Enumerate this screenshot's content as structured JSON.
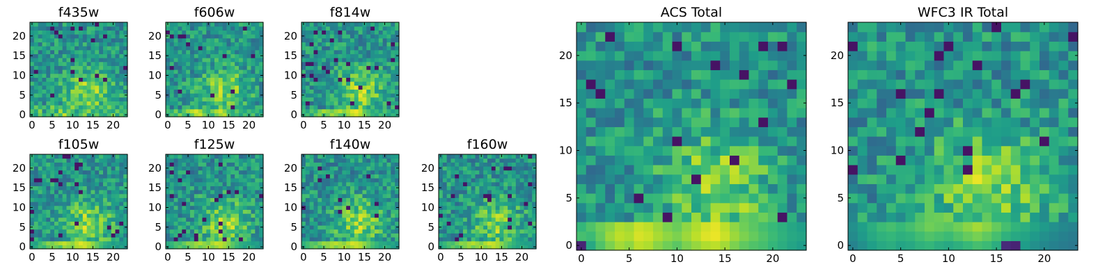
{
  "colormap": {
    "name": "viridis",
    "stops": [
      "#440154",
      "#482878",
      "#3e4a89",
      "#31688e",
      "#26828e",
      "#1f9e89",
      "#35b779",
      "#6ece58",
      "#b5de2b",
      "#fde725"
    ]
  },
  "axes_style": {
    "frame_color": "#000000",
    "background": "#ffffff"
  },
  "chart_data": [
    {
      "type": "heatmap",
      "title": "f435w",
      "grid_size": [
        24,
        24
      ],
      "xlim": [
        -0.5,
        23.5
      ],
      "ylim": [
        -0.5,
        23.5
      ],
      "origin": "lower",
      "xticks": [
        0,
        5,
        10,
        15,
        20
      ],
      "yticks": [
        0,
        5,
        10,
        15,
        20
      ],
      "xticklabels": [
        "0",
        "5",
        "10",
        "15",
        "20"
      ],
      "yticklabels": [
        "0",
        "5",
        "10",
        "15",
        "20"
      ],
      "grid": false,
      "value_range": [
        0,
        1
      ],
      "values": [
        [
          0.65,
          0.55,
          0.78,
          0.62,
          0.71,
          0.58,
          0.8,
          0.69,
          0.92,
          0.74,
          0.66,
          0.6,
          0.72,
          0.83,
          0.55,
          0.68,
          0.77,
          0.63,
          0.59,
          0.7,
          0.81,
          0.57,
          0.75,
          0.64
        ],
        [
          0.72,
          0.6,
          0.83,
          0.45,
          0.68,
          0.74,
          0.56,
          0.88,
          0.62,
          0.79,
          0.7,
          0.53,
          0.66,
          0.75,
          0.84,
          0.6,
          0.69,
          0.57,
          0.73,
          0.62,
          0.58,
          0.78,
          0.65,
          0.7
        ],
        [
          0.58,
          0.77,
          0.63,
          0.71,
          0.55,
          0.82,
          0.67,
          0.73,
          0.6,
          0.68,
          0.85,
          0.72,
          0.57,
          0.64,
          0.7,
          0.79,
          0.61,
          0.74,
          0.66,
          0.8,
          0.69,
          0.52,
          0.71,
          0.6
        ]
      ]
    },
    {
      "type": "heatmap",
      "title": "f606w",
      "grid_size": [
        24,
        24
      ],
      "xlim": [
        -0.5,
        23.5
      ],
      "ylim": [
        -0.5,
        23.5
      ],
      "origin": "lower",
      "xticks": [
        0,
        5,
        10,
        15,
        20
      ],
      "yticks": [
        0,
        5,
        10,
        15,
        20
      ],
      "xticklabels": [
        "0",
        "5",
        "10",
        "15",
        "20"
      ],
      "yticklabels": [
        "0",
        "5",
        "10",
        "15",
        "20"
      ],
      "grid": false,
      "value_range": [
        0,
        1
      ],
      "values": [
        [
          0.6,
          0.72,
          0.66,
          0.81,
          0.69,
          0.58,
          0.75,
          0.88,
          0.92,
          0.8,
          0.7,
          0.64,
          0.78,
          0.85,
          0.9,
          0.73,
          0.62,
          0.68,
          0.57,
          0.71,
          0.6,
          0.74,
          0.52,
          0.66
        ],
        [
          0.7,
          0.63,
          0.79,
          0.58,
          0.74,
          0.85,
          0.9,
          0.95,
          0.87,
          0.72,
          0.66,
          0.8,
          0.88,
          0.93,
          0.82,
          0.69,
          0.61,
          0.75,
          0.65,
          0.59,
          0.7,
          0.62,
          0.68,
          0.55
        ]
      ]
    },
    {
      "type": "heatmap",
      "title": "f814w",
      "grid_size": [
        24,
        24
      ],
      "xlim": [
        -0.5,
        23.5
      ],
      "ylim": [
        -0.5,
        23.5
      ],
      "origin": "lower",
      "xticks": [
        0,
        5,
        10,
        15,
        20
      ],
      "yticks": [
        0,
        5,
        10,
        15,
        20
      ],
      "xticklabels": [
        "0",
        "5",
        "10",
        "15",
        "20"
      ],
      "yticklabels": [
        "0",
        "5",
        "10",
        "15",
        "20"
      ],
      "grid": false,
      "value_range": [
        0,
        1
      ],
      "values": [
        [
          0.62,
          0.7,
          0.58,
          0.75,
          0.82,
          0.68,
          0.77,
          0.86,
          0.8,
          0.73,
          0.69,
          0.84,
          0.9,
          0.94,
          0.88,
          0.79,
          0.72,
          0.65,
          0.6,
          0.7,
          0.63,
          0.57,
          0.66,
          0.6
        ],
        [
          0.68,
          0.59,
          0.73,
          0.66,
          0.79,
          0.87,
          0.83,
          0.78,
          0.85,
          0.9,
          0.82,
          0.88,
          0.95,
          0.98,
          0.91,
          0.76,
          0.7,
          0.61,
          0.67,
          0.58,
          0.72,
          0.64,
          0.55,
          0.62
        ]
      ]
    },
    {
      "type": "heatmap",
      "title": "f105w",
      "grid_size": [
        24,
        24
      ],
      "xlim": [
        -0.5,
        23.5
      ],
      "ylim": [
        -0.5,
        23.5
      ],
      "origin": "lower",
      "xticks": [
        0,
        5,
        10,
        15,
        20
      ],
      "yticks": [
        0,
        5,
        10,
        15,
        20
      ],
      "xticklabels": [
        "0",
        "5",
        "10",
        "15",
        "20"
      ],
      "yticklabels": [
        "0",
        "5",
        "10",
        "15",
        "20"
      ],
      "grid": false,
      "value_range": [
        0,
        1
      ],
      "values": [
        [
          0.55,
          0.62,
          0.7,
          0.66,
          0.74,
          0.8,
          0.77,
          0.72,
          0.85,
          0.82,
          0.79,
          0.88,
          0.9,
          0.93,
          0.86,
          0.81,
          0.75,
          0.68,
          0.6,
          0.57,
          0.63,
          0.52,
          0.58,
          0.5
        ],
        [
          0.6,
          0.57,
          0.68,
          0.75,
          0.82,
          0.79,
          0.84,
          0.88,
          0.91,
          0.87,
          0.83,
          0.9,
          0.96,
          0.92,
          0.89,
          0.83,
          0.76,
          0.7,
          0.64,
          0.6,
          0.55,
          0.59,
          0.53,
          0.56
        ]
      ]
    },
    {
      "type": "heatmap",
      "title": "f125w",
      "grid_size": [
        24,
        24
      ],
      "xlim": [
        -0.5,
        23.5
      ],
      "ylim": [
        -0.5,
        23.5
      ],
      "origin": "lower",
      "xticks": [
        0,
        5,
        10,
        15,
        20
      ],
      "yticks": [
        0,
        5,
        10,
        15,
        20
      ],
      "xticklabels": [
        "0",
        "5",
        "10",
        "15",
        "20"
      ],
      "yticklabels": [
        "0",
        "5",
        "10",
        "15",
        "20"
      ],
      "grid": false,
      "value_range": [
        0,
        1
      ],
      "values": [
        [
          0.58,
          0.63,
          0.7,
          0.74,
          0.68,
          0.72,
          0.79,
          0.83,
          0.77,
          0.81,
          0.86,
          0.8,
          0.84,
          0.89,
          0.85,
          0.78,
          0.73,
          0.66,
          0.62,
          0.57,
          0.65,
          0.6,
          0.54,
          0.52
        ],
        [
          0.62,
          0.66,
          0.71,
          0.69,
          0.76,
          0.82,
          0.8,
          0.85,
          0.88,
          0.83,
          0.79,
          0.87,
          0.92,
          0.9,
          0.86,
          0.81,
          0.74,
          0.69,
          0.63,
          0.6,
          0.58,
          0.55,
          0.57,
          0.5
        ]
      ]
    },
    {
      "type": "heatmap",
      "title": "f140w",
      "grid_size": [
        24,
        24
      ],
      "xlim": [
        -0.5,
        23.5
      ],
      "ylim": [
        -0.5,
        23.5
      ],
      "origin": "lower",
      "xticks": [
        0,
        5,
        10,
        15,
        20
      ],
      "yticks": [
        0,
        5,
        10,
        15,
        20
      ],
      "xticklabels": [
        "0",
        "5",
        "10",
        "15",
        "20"
      ],
      "yticklabels": [
        "0",
        "5",
        "10",
        "15",
        "20"
      ],
      "grid": false,
      "value_range": [
        0,
        1
      ],
      "values": [
        [
          0.6,
          0.68,
          0.73,
          0.78,
          0.71,
          0.76,
          0.82,
          0.86,
          0.8,
          0.84,
          0.88,
          0.83,
          0.87,
          0.91,
          0.88,
          0.8,
          0.75,
          0.69,
          0.64,
          0.59,
          0.66,
          0.62,
          0.56,
          0.54
        ],
        [
          0.64,
          0.69,
          0.74,
          0.72,
          0.79,
          0.85,
          0.83,
          0.87,
          0.9,
          0.86,
          0.82,
          0.89,
          0.94,
          0.92,
          0.88,
          0.83,
          0.77,
          0.71,
          0.66,
          0.61,
          0.6,
          0.57,
          0.59,
          0.52
        ]
      ]
    },
    {
      "type": "heatmap",
      "title": "f160w",
      "grid_size": [
        24,
        24
      ],
      "xlim": [
        -0.5,
        23.5
      ],
      "ylim": [
        -0.5,
        23.5
      ],
      "origin": "lower",
      "xticks": [
        0,
        5,
        10,
        15,
        20
      ],
      "yticks": [
        0,
        5,
        10,
        15,
        20
      ],
      "xticklabels": [
        "0",
        "5",
        "10",
        "15",
        "20"
      ],
      "yticklabels": [
        "0",
        "5",
        "10",
        "15",
        "20"
      ],
      "grid": false,
      "value_range": [
        0,
        1
      ],
      "values": [
        [
          0.56,
          0.64,
          0.69,
          0.75,
          0.7,
          0.73,
          0.8,
          0.84,
          0.78,
          0.82,
          0.87,
          0.81,
          0.85,
          0.9,
          0.86,
          0.79,
          0.74,
          0.67,
          0.62,
          0.58,
          0.64,
          0.6,
          0.55,
          0.5
        ],
        [
          0.61,
          0.67,
          0.72,
          0.7,
          0.77,
          0.83,
          0.81,
          0.86,
          0.89,
          0.85,
          0.8,
          0.88,
          0.93,
          0.91,
          0.87,
          0.82,
          0.75,
          0.7,
          0.65,
          0.6,
          0.58,
          0.56,
          0.57,
          0.51
        ]
      ]
    },
    {
      "type": "heatmap",
      "title": "ACS Total",
      "grid_size": [
        24,
        24
      ],
      "xlim": [
        -0.5,
        23.5
      ],
      "ylim": [
        -0.5,
        23.5
      ],
      "origin": "lower",
      "xticks": [
        0,
        5,
        10,
        15,
        20
      ],
      "yticks": [
        0,
        5,
        10,
        15,
        20
      ],
      "xticklabels": [
        "0",
        "5",
        "10",
        "15",
        "20"
      ],
      "yticklabels": [
        "0",
        "5",
        "10",
        "15",
        "20"
      ],
      "grid": false,
      "value_range": [
        0,
        1
      ],
      "values": [
        [
          0.1,
          0.6,
          0.72,
          0.8,
          0.86,
          0.83,
          0.9,
          0.88,
          0.82,
          0.78,
          0.74,
          0.8,
          0.84,
          0.88,
          0.9,
          0.86,
          0.8,
          0.75,
          0.72,
          0.7,
          0.66,
          0.62,
          0.58,
          0.55
        ],
        [
          0.7,
          0.68,
          0.76,
          0.85,
          0.9,
          0.88,
          0.94,
          0.92,
          0.87,
          0.83,
          0.8,
          0.85,
          0.9,
          0.95,
          0.97,
          0.92,
          0.85,
          0.8,
          0.76,
          0.72,
          0.68,
          0.64,
          0.6,
          0.58
        ],
        [
          0.66,
          0.72,
          0.78,
          0.82,
          0.88,
          0.86,
          0.92,
          0.9,
          0.85,
          0.8,
          0.77,
          0.83,
          0.88,
          0.93,
          0.96,
          0.9,
          0.83,
          0.78,
          0.74,
          0.7,
          0.67,
          0.63,
          0.59,
          0.56
        ]
      ]
    },
    {
      "type": "heatmap",
      "title": "WFC3 IR Total",
      "grid_size": [
        24,
        24
      ],
      "xlim": [
        -0.5,
        23.5
      ],
      "ylim": [
        -0.5,
        23.5
      ],
      "origin": "lower",
      "xticks": [
        0,
        5,
        10,
        15,
        20
      ],
      "yticks": [
        0,
        5,
        10,
        15,
        20
      ],
      "xticklabels": [
        "0",
        "5",
        "10",
        "15",
        "20"
      ],
      "yticklabels": [
        "0",
        "5",
        "10",
        "15",
        "20"
      ],
      "grid": false,
      "value_range": [
        0,
        1
      ],
      "values": [
        [
          0.45,
          0.5,
          0.56,
          0.6,
          0.62,
          0.58,
          0.6,
          0.64,
          0.66,
          0.62,
          0.6,
          0.63,
          0.67,
          0.7,
          0.68,
          0.62,
          0.12,
          0.1,
          0.55,
          0.5,
          0.47,
          0.44,
          0.42,
          0.4
        ],
        [
          0.48,
          0.54,
          0.6,
          0.64,
          0.66,
          0.63,
          0.65,
          0.69,
          0.72,
          0.7,
          0.68,
          0.72,
          0.76,
          0.79,
          0.75,
          0.7,
          0.64,
          0.6,
          0.58,
          0.54,
          0.5,
          0.47,
          0.44,
          0.42
        ],
        [
          0.5,
          0.56,
          0.62,
          0.68,
          0.7,
          0.67,
          0.7,
          0.74,
          0.78,
          0.76,
          0.74,
          0.78,
          0.82,
          0.86,
          0.82,
          0.76,
          0.7,
          0.65,
          0.62,
          0.58,
          0.54,
          0.5,
          0.47,
          0.45
        ]
      ]
    }
  ]
}
